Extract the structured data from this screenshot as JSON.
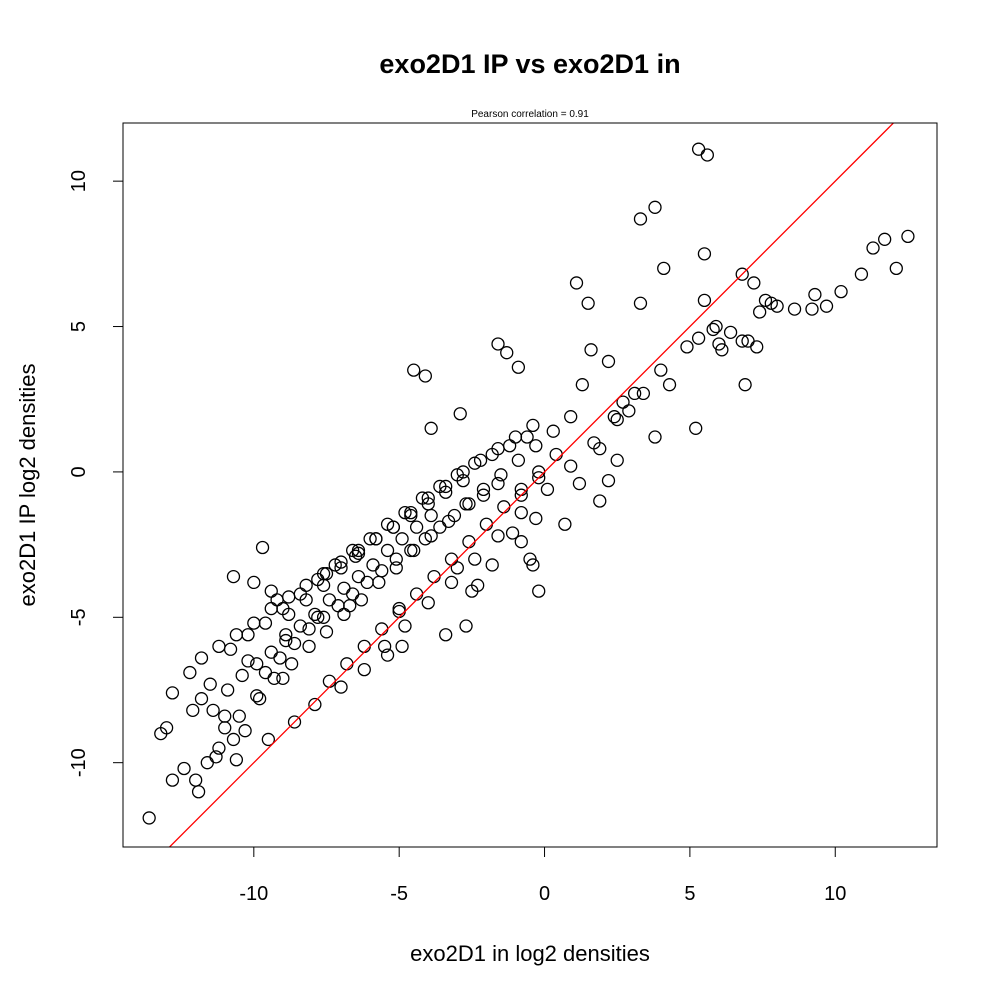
{
  "chart_data": {
    "type": "scatter",
    "title": "exo2D1 IP vs exo2D1 in",
    "subtitle": "Pearson correlation =  0.91",
    "xlabel": "exo2D1 in log2 densities",
    "ylabel": "exo2D1 IP log2 densities",
    "xlim": [
      -14.5,
      13.5
    ],
    "ylim": [
      -12.9,
      12.0
    ],
    "xticks": [
      -10,
      -5,
      0,
      5,
      10
    ],
    "xtick_labels": [
      "-10",
      "-5",
      "0",
      "5",
      "10"
    ],
    "yticks": [
      -10,
      -5,
      0,
      5,
      10
    ],
    "ytick_labels": [
      "-10",
      "-5",
      "0",
      "5",
      "10"
    ],
    "grid": false,
    "marker": "open-circle",
    "point_color": "#000000",
    "reference_line": {
      "slope": 1,
      "intercept": 0,
      "color": "#ff0000"
    },
    "series": [
      {
        "x": [
          5.3,
          5.6,
          3.3,
          3.8,
          4.1,
          5.5,
          1.1,
          1.5,
          3.3,
          5.5,
          6.8,
          7.2,
          11.3,
          10.9,
          11.7,
          12.5,
          12.1,
          10.2,
          9.7,
          9.3,
          9.2,
          8.6,
          8.0,
          7.6,
          7.8,
          7.4,
          6.8,
          7.0,
          7.3,
          6.4,
          6.0,
          5.8,
          5.9,
          6.1,
          4.9,
          5.3,
          4.0,
          4.3,
          6.9,
          5.2,
          3.8,
          2.7,
          2.4,
          2.9,
          3.1,
          2.5,
          1.9,
          3.4,
          2.2,
          1.3,
          1.6,
          -1.6,
          -1.3,
          -0.9,
          -4.1,
          -4.5,
          -3.9,
          -2.9,
          -0.2,
          -0.8,
          1.2,
          2.2,
          1.9,
          0.7,
          -0.4,
          -0.8,
          -1.1,
          -0.2,
          -0.5,
          -0.3,
          -1.8,
          -2.3,
          -2.7,
          -3.4,
          -5.4,
          -5.0,
          -4.9,
          -2.5,
          -3.0,
          -13.6,
          -13.2,
          -13.0,
          -12.8,
          -12.2,
          -11.5,
          -10.2,
          -8.9,
          -7.8,
          -6.7,
          -9.7,
          -10.7,
          -10.0,
          -9.4,
          -9.2,
          -8.8,
          -7.5,
          -6.5,
          -12.8,
          -12.4,
          -11.9,
          -12.0,
          -11.3,
          -11.6,
          -10.7,
          -11.0,
          -10.5,
          -9.8,
          -9.0,
          -11.8,
          -12.1,
          -11.0,
          -10.3,
          -11.2,
          -10.6,
          -9.5,
          -8.6,
          -7.9,
          -7.0,
          -6.2,
          -5.5,
          -4.8,
          -4.0,
          -3.2,
          -2.4,
          -1.6,
          -0.8,
          0.1,
          0.9,
          1.7,
          2.5,
          -9.9,
          -9.3,
          -8.7,
          -8.1,
          -7.5,
          -6.9,
          -6.3,
          -5.7,
          -5.1,
          -4.5,
          -3.9,
          -3.3,
          -2.7,
          -2.1,
          -1.5,
          -0.9,
          -0.3,
          0.3,
          0.9,
          -10.8,
          -10.2,
          -9.6,
          -9.0,
          -8.4,
          -7.8,
          -7.2,
          -6.6,
          -6.0,
          -5.4,
          -4.8,
          -4.2,
          -3.6,
          -3.0,
          -2.4,
          -1.8,
          -1.2,
          -0.6,
          -8.2,
          -7.6,
          -7.0,
          -6.4,
          -5.8,
          -5.2,
          -4.6,
          -4.0,
          -3.4,
          -2.8,
          -2.2,
          -1.6,
          -1.0,
          -0.4,
          -11.4,
          -10.9,
          -10.4,
          -9.9,
          -9.4,
          -8.9,
          -8.4,
          -7.9,
          -7.4,
          -6.9,
          -6.4,
          -5.9,
          -5.4,
          -4.9,
          -4.4,
          -3.9,
          -11.8,
          -11.2,
          -10.6,
          -10.0,
          -9.4,
          -8.8,
          -8.2,
          -7.6,
          -7.0,
          -6.4,
          -5.8,
          -5.2,
          -4.6,
          -4.0,
          -3.4,
          -2.8,
          -9.6,
          -9.1,
          -8.6,
          -8.1,
          -7.6,
          -7.1,
          -6.6,
          -6.1,
          -5.6,
          -5.1,
          -4.6,
          -4.1,
          -3.6,
          -3.1,
          -2.6,
          -2.1,
          -1.6,
          -7.4,
          -6.8,
          -6.2,
          -5.6,
          -5.0,
          -4.4,
          -3.8,
          -3.2,
          -2.6,
          -2.0,
          -1.4,
          -0.8,
          -0.2,
          0.4
        ],
        "y": [
          11.1,
          10.9,
          8.7,
          9.1,
          7.0,
          7.5,
          6.5,
          5.8,
          5.8,
          5.9,
          6.8,
          6.5,
          7.7,
          6.8,
          8.0,
          8.1,
          7.0,
          6.2,
          5.7,
          6.1,
          5.6,
          5.6,
          5.7,
          5.9,
          5.8,
          5.5,
          4.5,
          4.5,
          4.3,
          4.8,
          4.4,
          4.9,
          5.0,
          4.2,
          4.3,
          4.6,
          3.5,
          3.0,
          3.0,
          1.5,
          1.2,
          2.4,
          1.9,
          2.1,
          2.7,
          0.4,
          0.8,
          2.7,
          3.8,
          3.0,
          4.2,
          4.4,
          4.1,
          3.6,
          3.3,
          3.5,
          1.5,
          2.0,
          -0.2,
          -0.8,
          -0.4,
          -0.3,
          -1.0,
          -1.8,
          -3.2,
          -2.4,
          -2.1,
          -4.1,
          -3.0,
          -1.6,
          -3.2,
          -3.9,
          -5.3,
          -5.6,
          -6.3,
          -4.7,
          -6.0,
          -4.1,
          -3.3,
          -11.9,
          -9.0,
          -8.8,
          -7.6,
          -6.9,
          -7.3,
          -6.5,
          -5.6,
          -5.0,
          -4.6,
          -2.6,
          -3.6,
          -3.8,
          -4.1,
          -4.4,
          -4.9,
          -3.5,
          -2.9,
          -10.6,
          -10.2,
          -11.0,
          -10.6,
          -9.8,
          -10.0,
          -9.2,
          -8.8,
          -8.4,
          -7.8,
          -7.1,
          -7.8,
          -8.2,
          -8.4,
          -8.9,
          -9.5,
          -9.9,
          -9.2,
          -8.6,
          -8.0,
          -7.4,
          -6.8,
          -6.0,
          -5.3,
          -4.5,
          -3.8,
          -3.0,
          -2.2,
          -1.4,
          -0.6,
          0.2,
          1.0,
          1.8,
          -7.7,
          -7.1,
          -6.6,
          -6.0,
          -5.5,
          -4.9,
          -4.4,
          -3.8,
          -3.3,
          -2.7,
          -2.2,
          -1.7,
          -1.1,
          -0.6,
          -0.1,
          0.4,
          0.9,
          1.4,
          1.9,
          -6.1,
          -5.6,
          -5.2,
          -4.7,
          -4.2,
          -3.7,
          -3.2,
          -2.7,
          -2.3,
          -1.8,
          -1.4,
          -0.9,
          -0.5,
          -0.1,
          0.3,
          0.6,
          0.9,
          1.2,
          -4.4,
          -3.9,
          -3.3,
          -2.8,
          -2.3,
          -1.9,
          -1.4,
          -0.9,
          -0.5,
          0.0,
          0.4,
          0.8,
          1.2,
          1.6,
          -8.2,
          -7.5,
          -7.0,
          -6.6,
          -6.2,
          -5.8,
          -5.3,
          -4.9,
          -4.4,
          -4.0,
          -3.6,
          -3.2,
          -2.7,
          -2.3,
          -1.9,
          -1.5,
          -6.4,
          -6.0,
          -5.6,
          -5.2,
          -4.7,
          -4.3,
          -3.9,
          -3.5,
          -3.1,
          -2.7,
          -2.3,
          -1.9,
          -1.5,
          -1.1,
          -0.7,
          -0.3,
          -6.9,
          -6.4,
          -5.9,
          -5.4,
          -5.0,
          -4.6,
          -4.2,
          -3.8,
          -3.4,
          -3.0,
          -2.7,
          -2.3,
          -1.9,
          -1.5,
          -1.1,
          -0.8,
          -0.4,
          -7.2,
          -6.6,
          -6.0,
          -5.4,
          -4.8,
          -4.2,
          -3.6,
          -3.0,
          -2.4,
          -1.8,
          -1.2,
          -0.6,
          0.0,
          0.6
        ]
      }
    ]
  }
}
